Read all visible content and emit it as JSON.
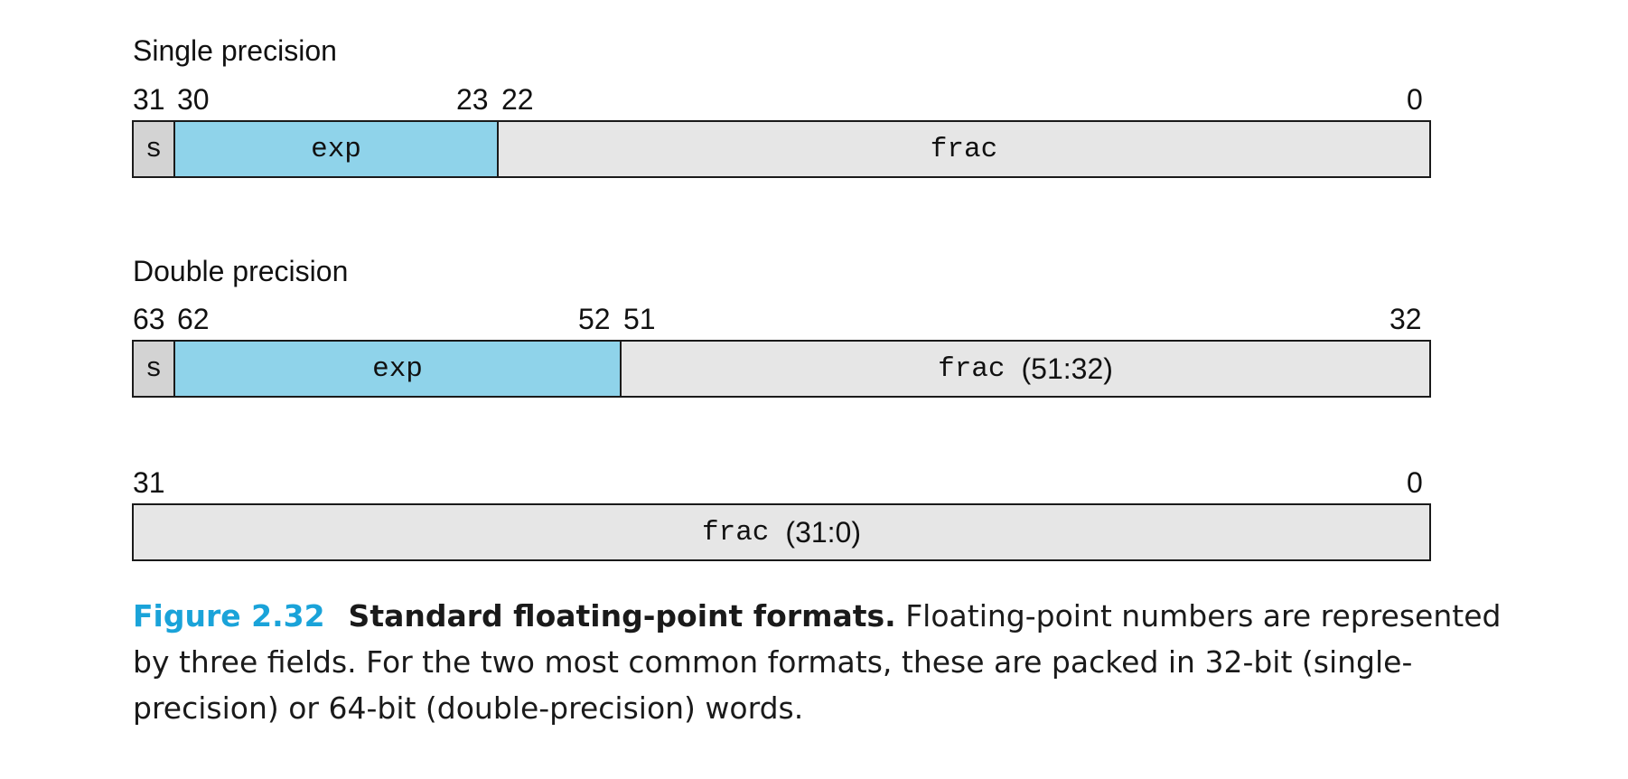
{
  "single": {
    "title": "Single precision",
    "bits": {
      "b31": "31",
      "b30": "30",
      "b23": "23",
      "b22": "22",
      "b0": "0"
    },
    "fields": {
      "s": "s",
      "exp": "exp",
      "frac": "frac"
    }
  },
  "double": {
    "title": "Double precision",
    "bits": {
      "b63": "63",
      "b62": "62",
      "b52": "52",
      "b51": "51",
      "b32": "32"
    },
    "fields": {
      "s": "s",
      "exp": "exp",
      "frac": "frac",
      "frac_range": "(51:32)"
    }
  },
  "double_low": {
    "bits": {
      "b31": "31",
      "b0": "0"
    },
    "fields": {
      "frac": "frac",
      "frac_range": "(31:0)"
    }
  },
  "caption": {
    "number": "Figure 2.32",
    "title": "Standard floating-point formats.",
    "text": "Floating-point numbers are represented by three fields. For the two most common formats, these are packed in 32-bit (single-precision) or 64-bit (double-precision) words."
  },
  "colors": {
    "sign": "#d3d3d3",
    "exponent": "#8fd3ea",
    "fraction": "#e6e6e6",
    "figure_number": "#1aa3d9"
  }
}
